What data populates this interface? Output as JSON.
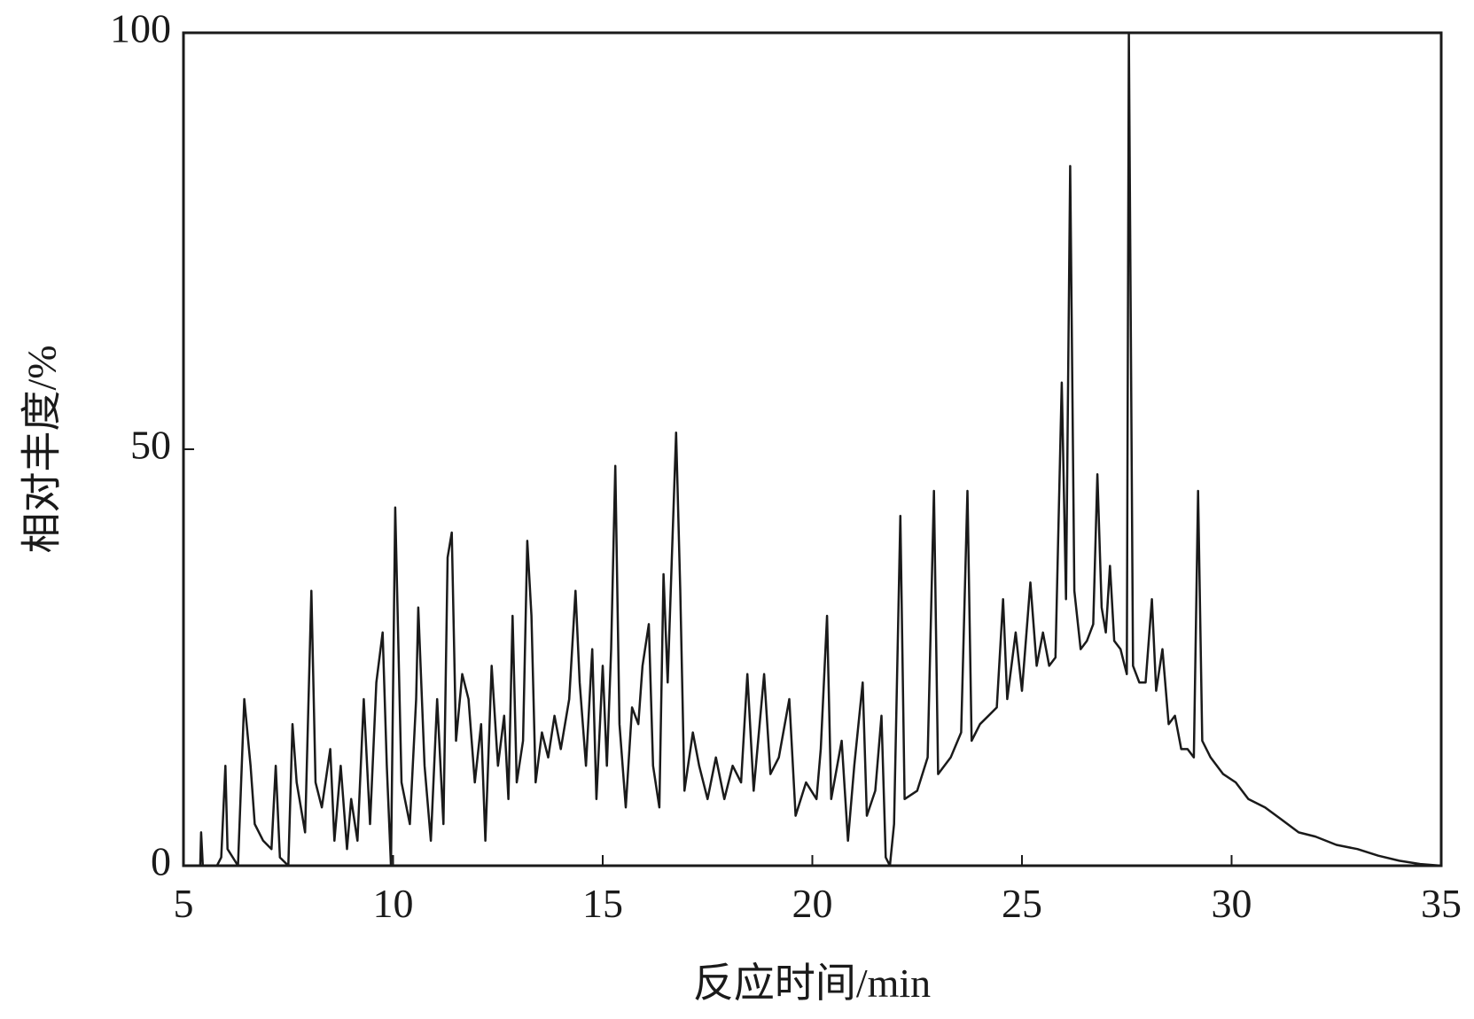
{
  "chart_data": {
    "type": "line",
    "xlabel": "反应时间/min",
    "ylabel": "相对丰度/%",
    "xlim": [
      5,
      35
    ],
    "xticks": [
      5,
      10,
      15,
      20,
      25,
      30,
      35
    ],
    "ylim": [
      0,
      100
    ],
    "yticks": [
      0,
      50,
      100
    ],
    "series": [
      {
        "color": "#1a1a1a",
        "x": [
          5.0,
          5.4,
          5.42,
          5.46,
          5.8,
          5.9,
          6.0,
          6.05,
          6.3,
          6.45,
          6.6,
          6.7,
          6.9,
          7.1,
          7.2,
          7.3,
          7.5,
          7.6,
          7.7,
          7.9,
          8.05,
          8.15,
          8.3,
          8.5,
          8.6,
          8.75,
          8.9,
          9.0,
          9.15,
          9.3,
          9.45,
          9.6,
          9.75,
          9.85,
          9.95,
          10.05,
          10.2,
          10.4,
          10.55,
          10.6,
          10.75,
          10.9,
          11.05,
          11.2,
          11.3,
          11.4,
          11.5,
          11.65,
          11.8,
          11.95,
          12.1,
          12.2,
          12.35,
          12.5,
          12.65,
          12.75,
          12.85,
          12.95,
          13.1,
          13.2,
          13.3,
          13.4,
          13.55,
          13.7,
          13.85,
          14.0,
          14.2,
          14.35,
          14.45,
          14.6,
          14.75,
          14.85,
          15.0,
          15.1,
          15.2,
          15.3,
          15.4,
          15.55,
          15.7,
          15.85,
          15.95,
          16.1,
          16.2,
          16.35,
          16.45,
          16.55,
          16.65,
          16.75,
          16.85,
          16.95,
          17.15,
          17.3,
          17.5,
          17.7,
          17.9,
          18.1,
          18.3,
          18.45,
          18.6,
          18.85,
          19.0,
          19.2,
          19.45,
          19.6,
          19.85,
          20.1,
          20.2,
          20.35,
          20.45,
          20.7,
          20.85,
          21.0,
          21.2,
          21.3,
          21.5,
          21.65,
          21.75,
          21.85,
          21.95,
          22.1,
          22.2,
          22.5,
          22.75,
          22.9,
          23.0,
          23.3,
          23.55,
          23.7,
          23.8,
          24.0,
          24.2,
          24.4,
          24.55,
          24.65,
          24.85,
          25.0,
          25.2,
          25.35,
          25.5,
          25.65,
          25.8,
          25.95,
          26.05,
          26.15,
          26.25,
          26.4,
          26.55,
          26.7,
          26.8,
          26.9,
          27.0,
          27.1,
          27.2,
          27.35,
          27.5,
          27.55,
          27.65,
          27.8,
          27.95,
          28.1,
          28.2,
          28.35,
          28.5,
          28.65,
          28.8,
          28.95,
          29.1,
          29.2,
          29.3,
          29.5,
          29.8,
          30.1,
          30.4,
          30.8,
          31.2,
          31.6,
          32.0,
          32.5,
          33.0,
          33.5,
          34.0,
          34.5,
          35.0
        ],
        "values": [
          0,
          0,
          4,
          0,
          0,
          1,
          12,
          2,
          0,
          20,
          12,
          5,
          3,
          2,
          12,
          1,
          0,
          17,
          10,
          4,
          33,
          10,
          7,
          14,
          3,
          12,
          2,
          8,
          3,
          20,
          5,
          22,
          28,
          12,
          0,
          43,
          10,
          5,
          20,
          31,
          12,
          3,
          20,
          5,
          37,
          40,
          15,
          23,
          20,
          10,
          17,
          3,
          24,
          12,
          18,
          8,
          30,
          10,
          15,
          39,
          30,
          10,
          16,
          13,
          18,
          14,
          20,
          33,
          22,
          12,
          26,
          8,
          24,
          12,
          26,
          48,
          17,
          7,
          19,
          17,
          24,
          29,
          12,
          7,
          35,
          22,
          37,
          52,
          33,
          9,
          16,
          12,
          8,
          13,
          8,
          12,
          10,
          23,
          9,
          23,
          11,
          13,
          20,
          6,
          10,
          8,
          14,
          30,
          8,
          15,
          3,
          12,
          22,
          6,
          9,
          18,
          1,
          0,
          5,
          42,
          8,
          9,
          13,
          45,
          11,
          13,
          16,
          45,
          15,
          17,
          18,
          19,
          32,
          20,
          28,
          21,
          34,
          24,
          28,
          24,
          25,
          58,
          32,
          84,
          33,
          26,
          27,
          29,
          47,
          31,
          28,
          36,
          27,
          26,
          23,
          100,
          24,
          22,
          22,
          32,
          21,
          26,
          17,
          18,
          14,
          14,
          13,
          45,
          15,
          13,
          11,
          10,
          8,
          7,
          5.5,
          4,
          3.5,
          2.5,
          2,
          1.2,
          0.6,
          0.2,
          0
        ]
      }
    ]
  }
}
